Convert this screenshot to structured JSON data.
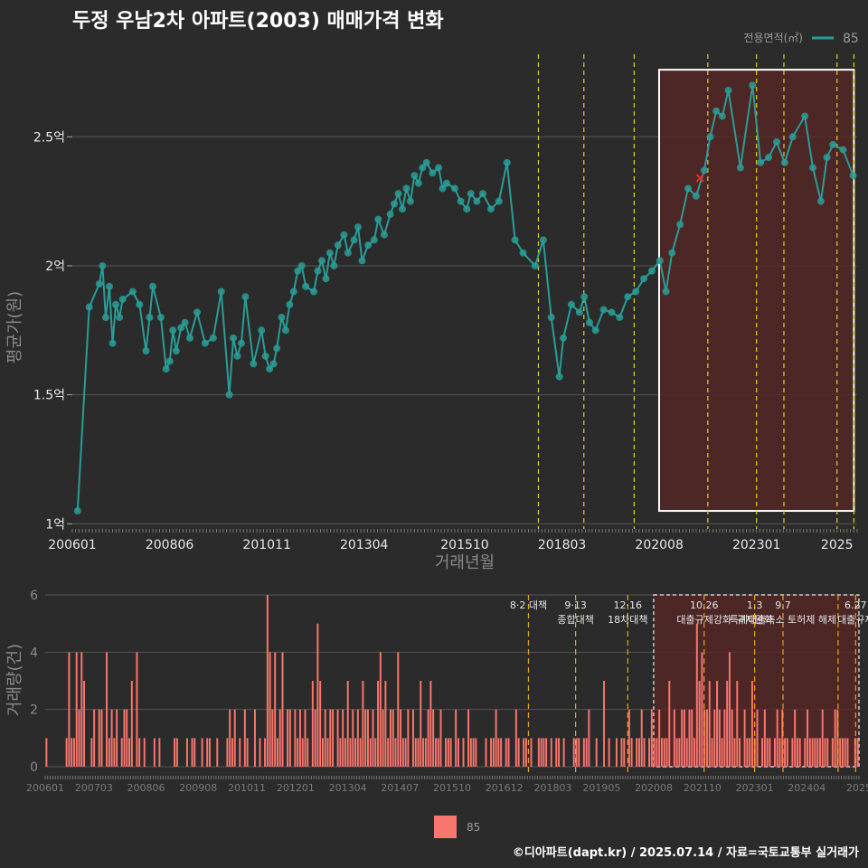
{
  "title": "두정 우남2차 아파트(2003) 매매가격 변화",
  "legend_top": {
    "label": "전용면적(㎡)",
    "item": "85",
    "color": "#2a9d97"
  },
  "legend_bottom": {
    "item": "85",
    "color": "#f8766d"
  },
  "footer": "©디아파트(dapt.kr) / 2025.07.14 / 자료=국토교통부 실거래가",
  "colors": {
    "background": "#2b2b2b",
    "line": "#2a9d97",
    "bar": "#f8766d",
    "highlight": "#5a2525",
    "vline": "#e8d21b"
  },
  "chart_data": [
    {
      "type": "line",
      "title": "두정 우남2차 아파트(2003) 매매가격 변화",
      "xlabel": "거래년월",
      "ylabel": "평균가(원)",
      "xlim": [
        2006.0,
        2025.5
      ],
      "ylim": [
        0.98,
        2.82
      ],
      "y_unit": "억",
      "xticks": [
        {
          "value": 2006.0,
          "label": "200601"
        },
        {
          "value": 2008.4167,
          "label": "200806"
        },
        {
          "value": 2010.8333,
          "label": "201011"
        },
        {
          "value": 2013.25,
          "label": "201304"
        },
        {
          "value": 2015.75,
          "label": "201510"
        },
        {
          "value": 2018.1667,
          "label": "201803"
        },
        {
          "value": 2020.5833,
          "label": "202008"
        },
        {
          "value": 2023.0,
          "label": "202301"
        },
        {
          "value": 2025.0,
          "label": "2025"
        }
      ],
      "yticks": [
        {
          "value": 1.0,
          "label": "1억"
        },
        {
          "value": 1.5,
          "label": "1.5억"
        },
        {
          "value": 2.0,
          "label": "2억"
        },
        {
          "value": 2.5,
          "label": "2.5억"
        }
      ],
      "policy_lines": [
        2017.58,
        2018.71,
        2019.96,
        2021.79,
        2023.0,
        2023.68,
        2025.0,
        2025.42
      ],
      "highlight_range": [
        2020.58,
        2025.42
      ],
      "highlight_y": [
        1.05,
        2.76
      ],
      "series": [
        {
          "name": "85",
          "points": [
            [
              2006.13,
              1.05
            ],
            [
              2006.42,
              1.84
            ],
            [
              2006.67,
              1.93
            ],
            [
              2006.75,
              2.0
            ],
            [
              2006.83,
              1.8
            ],
            [
              2006.92,
              1.92
            ],
            [
              2007.0,
              1.7
            ],
            [
              2007.08,
              1.85
            ],
            [
              2007.17,
              1.8
            ],
            [
              2007.25,
              1.87
            ],
            [
              2007.5,
              1.9
            ],
            [
              2007.67,
              1.85
            ],
            [
              2007.83,
              1.67
            ],
            [
              2007.92,
              1.8
            ],
            [
              2008.0,
              1.92
            ],
            [
              2008.2,
              1.8
            ],
            [
              2008.33,
              1.6
            ],
            [
              2008.42,
              1.63
            ],
            [
              2008.5,
              1.75
            ],
            [
              2008.58,
              1.67
            ],
            [
              2008.7,
              1.76
            ],
            [
              2008.8,
              1.78
            ],
            [
              2008.92,
              1.72
            ],
            [
              2009.1,
              1.82
            ],
            [
              2009.3,
              1.7
            ],
            [
              2009.5,
              1.72
            ],
            [
              2009.7,
              1.9
            ],
            [
              2009.9,
              1.5
            ],
            [
              2010.0,
              1.72
            ],
            [
              2010.1,
              1.65
            ],
            [
              2010.2,
              1.7
            ],
            [
              2010.3,
              1.88
            ],
            [
              2010.5,
              1.62
            ],
            [
              2010.7,
              1.75
            ],
            [
              2010.8,
              1.65
            ],
            [
              2010.9,
              1.6
            ],
            [
              2011.0,
              1.62
            ],
            [
              2011.08,
              1.68
            ],
            [
              2011.2,
              1.8
            ],
            [
              2011.3,
              1.75
            ],
            [
              2011.4,
              1.85
            ],
            [
              2011.5,
              1.9
            ],
            [
              2011.6,
              1.98
            ],
            [
              2011.7,
              2.0
            ],
            [
              2011.8,
              1.92
            ],
            [
              2012.0,
              1.9
            ],
            [
              2012.1,
              1.98
            ],
            [
              2012.2,
              2.02
            ],
            [
              2012.3,
              1.95
            ],
            [
              2012.4,
              2.05
            ],
            [
              2012.5,
              2.0
            ],
            [
              2012.6,
              2.08
            ],
            [
              2012.75,
              2.12
            ],
            [
              2012.85,
              2.05
            ],
            [
              2013.0,
              2.1
            ],
            [
              2013.1,
              2.15
            ],
            [
              2013.2,
              2.02
            ],
            [
              2013.35,
              2.08
            ],
            [
              2013.5,
              2.1
            ],
            [
              2013.6,
              2.18
            ],
            [
              2013.75,
              2.12
            ],
            [
              2013.9,
              2.2
            ],
            [
              2014.0,
              2.24
            ],
            [
              2014.1,
              2.28
            ],
            [
              2014.2,
              2.22
            ],
            [
              2014.3,
              2.3
            ],
            [
              2014.4,
              2.25
            ],
            [
              2014.5,
              2.35
            ],
            [
              2014.6,
              2.32
            ],
            [
              2014.7,
              2.38
            ],
            [
              2014.8,
              2.4
            ],
            [
              2014.95,
              2.36
            ],
            [
              2015.1,
              2.38
            ],
            [
              2015.2,
              2.3
            ],
            [
              2015.3,
              2.32
            ],
            [
              2015.5,
              2.3
            ],
            [
              2015.65,
              2.25
            ],
            [
              2015.8,
              2.22
            ],
            [
              2015.9,
              2.28
            ],
            [
              2016.05,
              2.25
            ],
            [
              2016.2,
              2.28
            ],
            [
              2016.4,
              2.22
            ],
            [
              2016.6,
              2.25
            ],
            [
              2016.8,
              2.4
            ],
            [
              2017.0,
              2.1
            ],
            [
              2017.2,
              2.05
            ],
            [
              2017.5,
              2.0
            ],
            [
              2017.7,
              2.1
            ],
            [
              2017.9,
              1.8
            ],
            [
              2018.1,
              1.57
            ],
            [
              2018.2,
              1.72
            ],
            [
              2018.4,
              1.85
            ],
            [
              2018.6,
              1.82
            ],
            [
              2018.72,
              1.88
            ],
            [
              2018.85,
              1.78
            ],
            [
              2019.0,
              1.75
            ],
            [
              2019.2,
              1.83
            ],
            [
              2019.4,
              1.82
            ],
            [
              2019.6,
              1.8
            ],
            [
              2019.8,
              1.88
            ],
            [
              2020.0,
              1.9
            ],
            [
              2020.2,
              1.95
            ],
            [
              2020.4,
              1.98
            ],
            [
              2020.6,
              2.02
            ],
            [
              2020.75,
              1.9
            ],
            [
              2020.9,
              2.05
            ],
            [
              2021.1,
              2.16
            ],
            [
              2021.3,
              2.3
            ],
            [
              2021.5,
              2.27
            ],
            [
              2021.7,
              2.37
            ],
            [
              2021.85,
              2.5
            ],
            [
              2022.0,
              2.6
            ],
            [
              2022.15,
              2.58
            ],
            [
              2022.3,
              2.68
            ],
            [
              2022.6,
              2.38
            ],
            [
              2022.9,
              2.7
            ],
            [
              2023.1,
              2.4
            ],
            [
              2023.3,
              2.42
            ],
            [
              2023.5,
              2.48
            ],
            [
              2023.7,
              2.4
            ],
            [
              2023.9,
              2.5
            ],
            [
              2024.2,
              2.58
            ],
            [
              2024.4,
              2.38
            ],
            [
              2024.6,
              2.25
            ],
            [
              2024.75,
              2.42
            ],
            [
              2024.9,
              2.47
            ],
            [
              2025.15,
              2.45
            ],
            [
              2025.4,
              2.35
            ]
          ],
          "marker": [
            2021.6,
            2.34
          ]
        }
      ]
    },
    {
      "type": "bar",
      "xlabel": "",
      "ylabel": "거래량(건)",
      "xlim": [
        2006.0,
        2025.5
      ],
      "ylim": [
        0,
        6
      ],
      "yticks": [
        0,
        2,
        4,
        6
      ],
      "xticks": [
        {
          "value": 2006.0,
          "label": "200601"
        },
        {
          "value": 2007.1667,
          "label": "200703"
        },
        {
          "value": 2008.4167,
          "label": "200806"
        },
        {
          "value": 2009.6667,
          "label": "200908"
        },
        {
          "value": 2010.8333,
          "label": "201011"
        },
        {
          "value": 2012.0,
          "label": "201201"
        },
        {
          "value": 2013.25,
          "label": "201304"
        },
        {
          "value": 2014.5,
          "label": "201407"
        },
        {
          "value": 2015.75,
          "label": "201510"
        },
        {
          "value": 2017.0,
          "label": "201612"
        },
        {
          "value": 2018.1667,
          "label": "201803"
        },
        {
          "value": 2019.3333,
          "label": "201905"
        },
        {
          "value": 2020.5833,
          "label": "202008"
        },
        {
          "value": 2021.75,
          "label": "202110"
        },
        {
          "value": 2023.0,
          "label": "202301"
        },
        {
          "value": 2024.25,
          "label": "202404"
        },
        {
          "value": 2025.5,
          "label": "2025"
        }
      ],
      "volumes": [
        1,
        0,
        0,
        0,
        0,
        0,
        0,
        0,
        1,
        4,
        1,
        1,
        4,
        2,
        4,
        3,
        0,
        0,
        1,
        2,
        0,
        2,
        2,
        0,
        4,
        1,
        2,
        1,
        2,
        0,
        1,
        2,
        2,
        1,
        3,
        0,
        4,
        1,
        0,
        1,
        0,
        0,
        0,
        1,
        0,
        1,
        0,
        0,
        0,
        0,
        0,
        1,
        1,
        0,
        0,
        0,
        1,
        0,
        1,
        1,
        0,
        0,
        1,
        0,
        1,
        1,
        0,
        0,
        1,
        0,
        0,
        0,
        1,
        2,
        1,
        2,
        0,
        1,
        0,
        2,
        1,
        0,
        0,
        2,
        0,
        1,
        0,
        1,
        6,
        4,
        2,
        4,
        1,
        2,
        4,
        0,
        2,
        2,
        0,
        2,
        1,
        2,
        1,
        2,
        1,
        0,
        3,
        2,
        5,
        3,
        1,
        2,
        1,
        2,
        2,
        0,
        2,
        1,
        2,
        1,
        3,
        1,
        2,
        1,
        2,
        1,
        3,
        2,
        2,
        1,
        2,
        1,
        3,
        4,
        2,
        3,
        1,
        2,
        2,
        1,
        4,
        2,
        1,
        1,
        2,
        0,
        2,
        1,
        1,
        3,
        1,
        1,
        2,
        3,
        2,
        1,
        1,
        2,
        0,
        1,
        1,
        1,
        0,
        2,
        1,
        0,
        1,
        0,
        2,
        1,
        1,
        1,
        0,
        0,
        0,
        1,
        0,
        1,
        1,
        2,
        1,
        1,
        0,
        1,
        1,
        0,
        0,
        2,
        1,
        0,
        1,
        1,
        0,
        1,
        0,
        0,
        1,
        1,
        1,
        1,
        0,
        1,
        0,
        1,
        1,
        0,
        1,
        0,
        0,
        0,
        1,
        1,
        1,
        0,
        1,
        1,
        2,
        0,
        0,
        1,
        0,
        0,
        3,
        0,
        1,
        0,
        0,
        1,
        0,
        1,
        1,
        0,
        2,
        1,
        0,
        1,
        1,
        2,
        1,
        0,
        1,
        2,
        1,
        1,
        2,
        1,
        1,
        1,
        3,
        0,
        2,
        1,
        1,
        2,
        2,
        1,
        2,
        2,
        1,
        5,
        3,
        4,
        2,
        2,
        3,
        1,
        2,
        3,
        2,
        1,
        2,
        3,
        4,
        2,
        1,
        3,
        1,
        0,
        2,
        1,
        1,
        3,
        1,
        2,
        0,
        1,
        2,
        1,
        1,
        0,
        1,
        2,
        1,
        2,
        1,
        1,
        0,
        1,
        2,
        1,
        1,
        0,
        1,
        2,
        1,
        1,
        1,
        1,
        1,
        2,
        1,
        1,
        0,
        1,
        2,
        2,
        1,
        1,
        1,
        1,
        0,
        0,
        1,
        1
      ],
      "highlight_range": [
        2020.58,
        2025.5
      ],
      "policy_lines": [
        2017.58,
        2018.71,
        2019.96,
        2021.79,
        2023.0,
        2023.68,
        2025.0,
        2025.42
      ],
      "annotations": [
        {
          "x": 2017.58,
          "lines": [
            "8·2 대책"
          ]
        },
        {
          "x": 2018.71,
          "lines": [
            "9·13",
            "종합대책"
          ]
        },
        {
          "x": 2019.96,
          "lines": [
            "12·16",
            "18차대책"
          ]
        },
        {
          "x": 2021.79,
          "lines": [
            "10.26",
            "대출규제강화"
          ]
        },
        {
          "x": 2023.0,
          "lines": [
            "1.3",
            "규제완화"
          ]
        },
        {
          "x": 2023.68,
          "lines": [
            "9.7",
            "특례대출축소 토허제 해제"
          ]
        },
        {
          "x": 2025.42,
          "lines": [
            "6.27",
            "대출규제"
          ]
        }
      ]
    }
  ]
}
